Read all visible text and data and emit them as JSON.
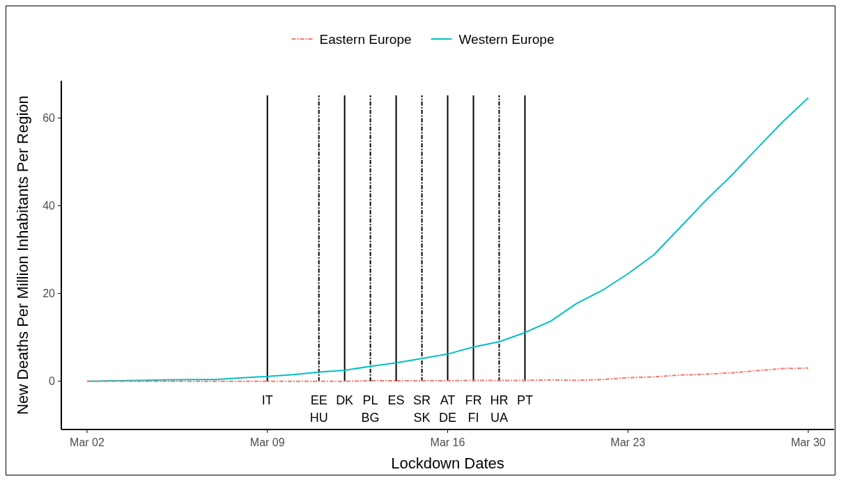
{
  "chart_data": {
    "type": "line",
    "xlabel": "Lockdown Dates",
    "ylabel": "New Deaths Per Million Inhabitants Per Region",
    "x": [
      "--03-02",
      "--03-03",
      "--03-04",
      "--03-05",
      "--03-06",
      "--03-07",
      "--03-08",
      "--03-09",
      "--03-10",
      "--03-11",
      "--03-12",
      "--03-13",
      "--03-14",
      "--03-15",
      "--03-16",
      "--03-17",
      "--03-18",
      "--03-19",
      "--03-20",
      "--03-21",
      "--03-22",
      "--03-23",
      "--03-24",
      "--03-25",
      "--03-26",
      "--03-27",
      "--03-28",
      "--03-29",
      "--03-30"
    ],
    "series": [
      {
        "name": "Eastern Europe",
        "color": "#f8766d",
        "line_style": "dashed",
        "values": [
          0,
          0,
          0,
          0,
          0,
          0,
          0,
          0,
          0,
          0,
          0,
          0.1,
          0.1,
          0.1,
          0.1,
          0.2,
          0.2,
          0.2,
          0.3,
          0.2,
          0.4,
          0.8,
          1.0,
          1.4,
          1.6,
          1.9,
          2.4,
          2.9,
          3.0
        ]
      },
      {
        "name": "Western Europe",
        "color": "#00bfc4",
        "line_style": "solid",
        "values": [
          0,
          0.1,
          0.2,
          0.3,
          0.4,
          0.4,
          0.8,
          1.1,
          1.5,
          2.1,
          2.5,
          3.4,
          4.2,
          5.2,
          6.2,
          7.8,
          9.0,
          11.1,
          13.7,
          17.7,
          20.7,
          24.5,
          28.8,
          34.9,
          41.1,
          46.8,
          53.0,
          59.1,
          64.6
        ]
      }
    ],
    "xlim": [
      "--03-01",
      "--03-31"
    ],
    "xticks": [
      {
        "value": "--03-02",
        "label": "Mar 02"
      },
      {
        "value": "--03-09",
        "label": "Mar 09"
      },
      {
        "value": "--03-16",
        "label": "Mar 16"
      },
      {
        "value": "--03-23",
        "label": "Mar 23"
      },
      {
        "value": "--03-30",
        "label": "Mar 30"
      }
    ],
    "ylim": [
      -11,
      68.5
    ],
    "yticks": [
      0,
      20,
      40,
      60
    ],
    "ref_lines": [
      {
        "axis": "x",
        "value": "--03-09",
        "label": "IT",
        "line_style": "solid",
        "color": "#000000"
      },
      {
        "axis": "x",
        "value": "--03-11",
        "label": "EE\nHU",
        "line_style": "dashed",
        "color": "#000000"
      },
      {
        "axis": "x",
        "value": "--03-12",
        "label": "DK",
        "line_style": "solid",
        "color": "#000000"
      },
      {
        "axis": "x",
        "value": "--03-13",
        "label": "PL\nBG",
        "line_style": "dashed",
        "color": "#000000"
      },
      {
        "axis": "x",
        "value": "--03-14",
        "label": "ES",
        "line_style": "solid",
        "color": "#000000"
      },
      {
        "axis": "x",
        "value": "--03-15",
        "label": "SR\nSK",
        "line_style": "dashed",
        "color": "#000000"
      },
      {
        "axis": "x",
        "value": "--03-16",
        "label": "AT\nDE",
        "line_style": "solid",
        "color": "#000000"
      },
      {
        "axis": "x",
        "value": "--03-17",
        "label": "FR\nFI",
        "line_style": "solid",
        "color": "#000000"
      },
      {
        "axis": "x",
        "value": "--03-18",
        "label": "HR\nUA",
        "line_style": "dashed",
        "color": "#000000"
      },
      {
        "axis": "x",
        "value": "--03-19",
        "label": "PT",
        "line_style": "solid",
        "color": "#000000"
      }
    ],
    "legend": "top",
    "grid": false
  }
}
